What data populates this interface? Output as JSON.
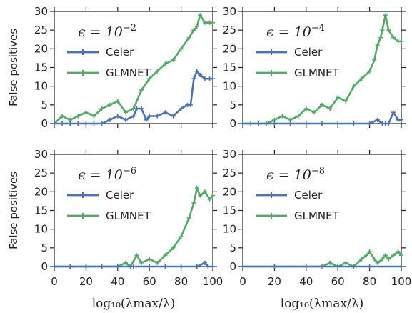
{
  "chart_data": [
    {
      "type": "line",
      "annotation": {
        "base": "ϵ = 10",
        "exp": "−2"
      },
      "ylabel": "False positives",
      "xlabel": "",
      "xlim": [
        0,
        100
      ],
      "ylim": [
        0,
        30
      ],
      "xticks": [
        "0",
        "20",
        "40",
        "60",
        "80",
        "100"
      ],
      "yticks": [
        "0",
        "5",
        "10",
        "15",
        "20",
        "25",
        "30"
      ],
      "legend": "upper-left",
      "series": [
        {
          "name": "Celer",
          "color": "#4c72b0",
          "x": [
            0,
            5,
            10,
            15,
            20,
            25,
            30,
            35,
            40,
            45,
            50,
            52,
            55,
            58,
            60,
            65,
            70,
            75,
            80,
            84,
            86,
            88,
            90,
            92,
            95,
            98,
            100
          ],
          "y": [
            0,
            0,
            0,
            0,
            0,
            0,
            0,
            1,
            2,
            1,
            2,
            4,
            4,
            1,
            2,
            2,
            3,
            2,
            4,
            5,
            5,
            12,
            14,
            13,
            12,
            12,
            12
          ]
        },
        {
          "name": "GLMNET",
          "color": "#55a868",
          "x": [
            0,
            5,
            10,
            15,
            20,
            25,
            30,
            35,
            40,
            45,
            50,
            55,
            60,
            65,
            70,
            75,
            80,
            85,
            88,
            90,
            92,
            95,
            98,
            100
          ],
          "y": [
            0,
            2,
            1,
            2,
            3,
            2,
            4,
            5,
            6,
            3,
            4,
            9,
            12,
            14,
            16,
            17,
            20,
            23,
            25,
            26,
            29,
            27,
            27,
            27
          ]
        }
      ]
    },
    {
      "type": "line",
      "annotation": {
        "base": "ϵ = 10",
        "exp": "−4"
      },
      "ylabel": "",
      "xlabel": "",
      "xlim": [
        0,
        100
      ],
      "ylim": [
        0,
        30
      ],
      "xticks": [
        "0",
        "20",
        "40",
        "60",
        "80",
        "100"
      ],
      "yticks": [
        "0",
        "5",
        "10",
        "15",
        "20",
        "25",
        "30"
      ],
      "legend": "upper-left",
      "series": [
        {
          "name": "Celer",
          "color": "#4c72b0",
          "x": [
            0,
            10,
            20,
            30,
            40,
            50,
            60,
            70,
            80,
            85,
            88,
            90,
            92,
            95,
            98,
            100
          ],
          "y": [
            0,
            0,
            0,
            0,
            0,
            0,
            0,
            0,
            0,
            1,
            0,
            0,
            0,
            3,
            1,
            1
          ]
        },
        {
          "name": "GLMNET",
          "color": "#55a868",
          "x": [
            0,
            5,
            10,
            15,
            20,
            25,
            30,
            35,
            40,
            45,
            50,
            55,
            60,
            65,
            70,
            75,
            80,
            83,
            85,
            87,
            88,
            90,
            92,
            95,
            98,
            100
          ],
          "y": [
            0,
            0,
            0,
            0,
            1,
            2,
            1,
            2,
            4,
            3,
            5,
            4,
            7,
            6,
            10,
            12,
            14,
            17,
            21,
            23,
            25,
            29,
            25,
            23,
            22,
            22
          ]
        }
      ]
    },
    {
      "type": "line",
      "annotation": {
        "base": "ϵ = 10",
        "exp": "−6"
      },
      "ylabel": "False positives",
      "xlabel": "log₁₀(λmax/λ)",
      "xlim": [
        0,
        100
      ],
      "ylim": [
        0,
        30
      ],
      "xticks": [
        "0",
        "20",
        "40",
        "60",
        "80",
        "100"
      ],
      "yticks": [
        "0",
        "5",
        "10",
        "15",
        "20",
        "25",
        "30"
      ],
      "legend": "upper-left",
      "series": [
        {
          "name": "Celer",
          "color": "#4c72b0",
          "x": [
            0,
            10,
            20,
            30,
            40,
            50,
            60,
            70,
            80,
            90,
            95,
            97,
            100
          ],
          "y": [
            0,
            0,
            0,
            0,
            0,
            0,
            0,
            0,
            0,
            0,
            1,
            0,
            0
          ]
        },
        {
          "name": "GLMNET",
          "color": "#55a868",
          "x": [
            0,
            10,
            20,
            30,
            40,
            45,
            48,
            52,
            55,
            60,
            65,
            70,
            75,
            80,
            85,
            88,
            90,
            92,
            95,
            98,
            100
          ],
          "y": [
            0,
            0,
            0,
            0,
            0,
            1,
            0,
            3,
            1,
            2,
            1,
            3,
            5,
            8,
            13,
            17,
            21,
            19,
            20,
            18,
            19
          ]
        }
      ]
    },
    {
      "type": "line",
      "annotation": {
        "base": "ϵ = 10",
        "exp": "−8"
      },
      "ylabel": "",
      "xlabel": "log₁₀(λmax/λ)",
      "xlim": [
        0,
        100
      ],
      "ylim": [
        0,
        30
      ],
      "xticks": [
        "0",
        "20",
        "40",
        "60",
        "80",
        "100"
      ],
      "yticks": [
        "0",
        "5",
        "10",
        "15",
        "20",
        "25",
        "30"
      ],
      "legend": "upper-left",
      "series": [
        {
          "name": "Celer",
          "color": "#4c72b0",
          "x": [
            0,
            20,
            40,
            60,
            80,
            100
          ],
          "y": [
            0,
            0,
            0,
            0,
            0,
            0
          ]
        },
        {
          "name": "GLMNET",
          "color": "#55a868",
          "x": [
            0,
            20,
            40,
            50,
            55,
            60,
            65,
            70,
            75,
            78,
            80,
            83,
            85,
            88,
            90,
            92,
            95,
            98,
            100
          ],
          "y": [
            0,
            0,
            0,
            0,
            1,
            0,
            1,
            0,
            2,
            3,
            4,
            2,
            1,
            2,
            3,
            2,
            3,
            4,
            3
          ]
        }
      ]
    }
  ]
}
